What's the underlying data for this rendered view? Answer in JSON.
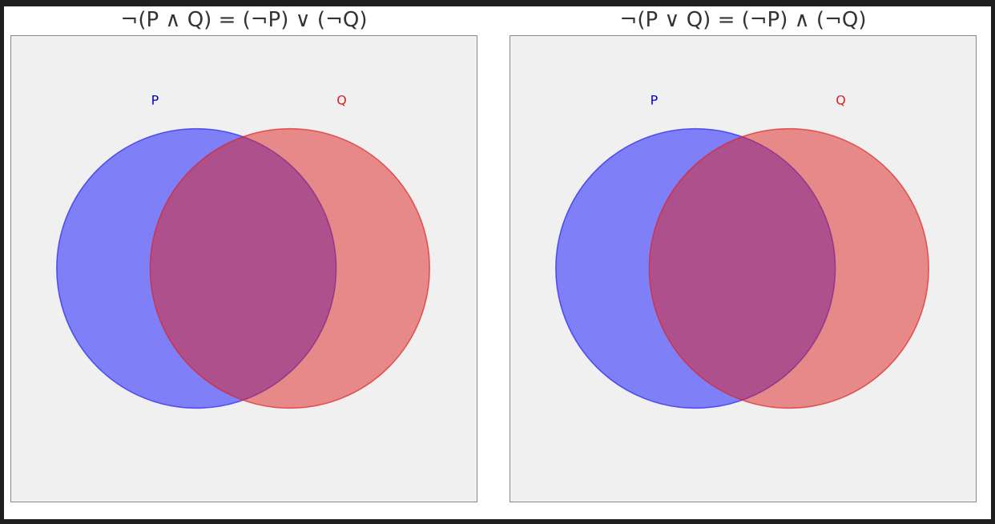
{
  "panels": [
    {
      "title": "¬(P ∧ Q) = (¬P) ∨ (¬Q)",
      "set_p_label": "P",
      "set_q_label": "Q"
    },
    {
      "title": "¬(P ∨ Q) = (¬P) ∧ (¬Q)",
      "set_p_label": "P",
      "set_q_label": "Q"
    }
  ],
  "colors": {
    "set_p_fill": "#0000ff",
    "set_p_label": "#0000cc",
    "set_q_fill": "#dd3333",
    "set_q_label": "#dd2222",
    "intersection_visible": "#a24f8d",
    "plot_background": "#f0f0f0"
  }
}
